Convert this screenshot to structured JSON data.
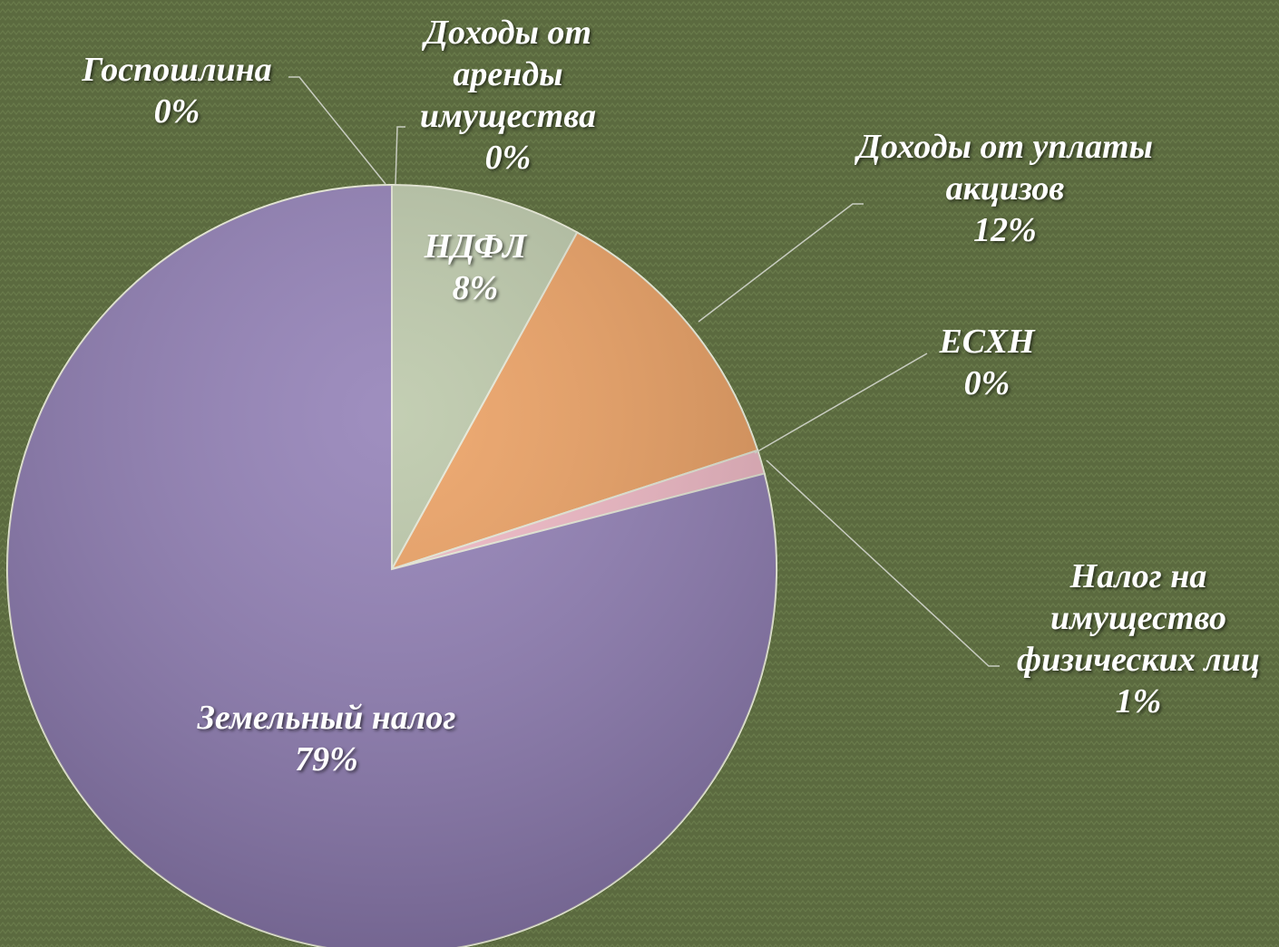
{
  "chart_data": {
    "type": "pie",
    "categories": [
      "НДФЛ",
      "Доходы от уплаты акцизов",
      "ЕСХН",
      "Налог на имущество физических лиц",
      "Земельный налог",
      "Госпошлина",
      "Доходы от аренды имущества"
    ],
    "values": [
      8,
      12,
      0,
      1,
      79,
      0,
      0
    ],
    "value_labels": [
      "8%",
      "12%",
      "0%",
      "1%",
      "79%",
      "0%",
      "0%"
    ],
    "colors": [
      "#b9c6a6",
      "#ec9d5c",
      "#e8a8a8",
      "#f1b7c4",
      "#8e7bb4",
      "#2f3324",
      "#eef0e4"
    ]
  }
}
